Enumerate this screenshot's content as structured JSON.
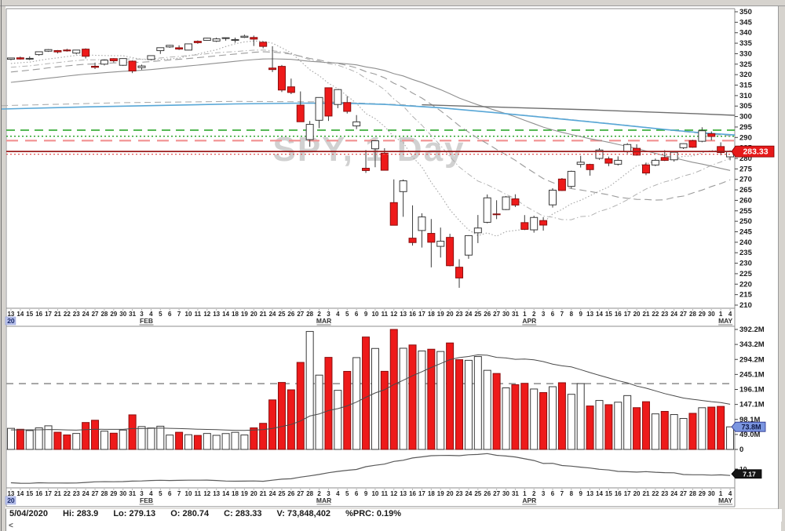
{
  "watermark": {
    "text": "SPY, 1 Day"
  },
  "price_axis": {
    "min": 210,
    "max": 350,
    "step": 5
  },
  "volume_axis_labels": [
    "392.2M",
    "343.2M",
    "294.2M",
    "245.1M",
    "196.1M",
    "147.1M",
    "98.1M",
    "49.0M",
    "0"
  ],
  "indicator_axis": {
    "tick": "10"
  },
  "badges": {
    "price": {
      "text": "283.33",
      "bg": "#e61919",
      "fg": "#ffffff",
      "border": "#7a0000"
    },
    "volume": {
      "text": "73.8M",
      "bg": "#7b96e0",
      "fg": "#0a1440",
      "border": "#26308c"
    },
    "indicator": {
      "text": "7.17",
      "bg": "#151515",
      "fg": "#ffffff",
      "border": "#000000"
    }
  },
  "levels": [
    {
      "price": 293.5,
      "color": "#2ea82e",
      "dash": "11,7",
      "w": 1.7,
      "above": false
    },
    {
      "price": 290.6,
      "color": "#1f9e1f",
      "dash": "2,3",
      "w": 1.4,
      "above": false
    },
    {
      "price": 288.5,
      "color": "#f29191",
      "dash": "15,9",
      "w": 2.2,
      "above": false
    },
    {
      "price": 283.33,
      "color": "#9c1f1f",
      "dash": "",
      "w": 1.8,
      "above": true
    },
    {
      "price": 282.0,
      "color": "#e25555",
      "dash": "2,3",
      "w": 1.3,
      "above": true
    }
  ],
  "volume_dash_level_m": 215,
  "status_bar": {
    "items": [
      "5/04/2020",
      "Hi: 283.9",
      "Lo: 279.13",
      "O: 280.74",
      "C: 283.33",
      "V: 73,848,402",
      "%PRC: 0.19%"
    ]
  },
  "scrollbar": {
    "left_arrow": "<"
  },
  "chart_data": {
    "type": "candlestick",
    "symbol": "SPY",
    "timeframe": "1 Day",
    "price_ylim": [
      210,
      350
    ],
    "volume_ylim_m": [
      0,
      392.2
    ],
    "x_labels": {
      "days": [
        "13",
        "14",
        "15",
        "16",
        "17",
        "21",
        "22",
        "23",
        "24",
        "27",
        "28",
        "29",
        "30",
        "31",
        "3",
        "4",
        "5",
        "6",
        "7",
        "10",
        "11",
        "12",
        "13",
        "14",
        "18",
        "19",
        "20",
        "21",
        "24",
        "25",
        "26",
        "27",
        "28",
        "2",
        "3",
        "4",
        "5",
        "6",
        "9",
        "10",
        "11",
        "12",
        "13",
        "16",
        "17",
        "18",
        "19",
        "20",
        "23",
        "24",
        "25",
        "26",
        "27",
        "30",
        "31",
        "1",
        "2",
        "3",
        "6",
        "7",
        "8",
        "9",
        "13",
        "14",
        "15",
        "16",
        "17",
        "20",
        "21",
        "22",
        "23",
        "24",
        "27",
        "28",
        "29",
        "30",
        "1",
        "4"
      ],
      "months": [
        {
          "i": 14,
          "label": "FEB"
        },
        {
          "i": 33,
          "label": "MAR"
        },
        {
          "i": 55,
          "label": "APR"
        },
        {
          "i": 76,
          "label": "MAY"
        }
      ],
      "year": {
        "i": 0,
        "label": "20"
      }
    },
    "ohlc": [
      [
        327.32,
        327.96,
        326.88,
        327.95
      ],
      [
        328.03,
        328.6,
        327.16,
        327.45
      ],
      [
        327.39,
        328.68,
        326.95,
        327.76
      ],
      [
        329.56,
        330.79,
        329.05,
        330.92
      ],
      [
        331.19,
        332.18,
        330.85,
        331.95
      ],
      [
        331.47,
        331.73,
        330.12,
        330.85
      ],
      [
        331.75,
        332.34,
        330.98,
        331.34
      ],
      [
        330.28,
        331.85,
        329.65,
        331.72
      ],
      [
        332.17,
        332.53,
        327.72,
        328.77
      ],
      [
        323.99,
        325.73,
        322.7,
        323.5
      ],
      [
        325.01,
        327.16,
        324.4,
        326.89
      ],
      [
        327.63,
        327.85,
        325.85,
        326.62
      ],
      [
        324.46,
        327.8,
        324.15,
        327.68
      ],
      [
        326.44,
        326.77,
        320.73,
        321.73
      ],
      [
        323.35,
        324.78,
        322.36,
        324.12
      ],
      [
        327.23,
        329.19,
        326.84,
        329.06
      ],
      [
        331.45,
        332.92,
        329.9,
        332.86
      ],
      [
        333.21,
        334.19,
        332.76,
        333.98
      ],
      [
        332.82,
        333.99,
        331.75,
        332.2
      ],
      [
        331.71,
        334.75,
        331.59,
        334.68
      ],
      [
        335.91,
        336.32,
        334.73,
        335.26
      ],
      [
        336.36,
        337.65,
        336.16,
        337.42
      ],
      [
        336.02,
        337.67,
        335.56,
        337.06
      ],
      [
        337.51,
        337.73,
        336.2,
        337.6
      ],
      [
        336.51,
        337.67,
        335.21,
        336.73
      ],
      [
        337.79,
        339.08,
        337.48,
        338.34
      ],
      [
        337.74,
        338.64,
        333.68,
        336.95
      ],
      [
        335.47,
        335.81,
        332.58,
        333.48
      ],
      [
        323.14,
        333.56,
        321.24,
        322.42
      ],
      [
        323.94,
        324.61,
        311.69,
        312.65
      ],
      [
        314.18,
        318.11,
        310.7,
        311.5
      ],
      [
        305.46,
        311.98,
        297.51,
        297.51
      ],
      [
        288.98,
        297.89,
        285.54,
        296.26
      ],
      [
        298.21,
        309.16,
        294.46,
        309.09
      ],
      [
        313.73,
        313.84,
        297.9,
        300.24
      ],
      [
        305.75,
        313.02,
        304.0,
        312.86
      ],
      [
        306.67,
        309.75,
        301.44,
        302.46
      ],
      [
        295.52,
        300.7,
        294.0,
        297.46
      ],
      [
        275.31,
        284.0,
        273.09,
        274.23
      ],
      [
        284.6,
        288.52,
        275.8,
        288.42
      ],
      [
        282.5,
        284.88,
        274.31,
        274.36
      ],
      [
        258.92,
        270.0,
        248.0,
        248.11
      ],
      [
        264.16,
        269.98,
        252.15,
        269.32
      ],
      [
        241.95,
        257.61,
        238.4,
        239.85
      ],
      [
        245.6,
        253.83,
        237.47,
        252.08
      ],
      [
        244.23,
        251.08,
        228.02,
        240.0
      ],
      [
        238.04,
        247.0,
        232.7,
        240.51
      ],
      [
        242.32,
        244.04,
        228.5,
        228.8
      ],
      [
        228.09,
        231.89,
        218.26,
        222.95
      ],
      [
        233.86,
        243.38,
        232.11,
        243.15
      ],
      [
        244.51,
        253.01,
        239.6,
        246.79
      ],
      [
        249.52,
        262.8,
        249.05,
        261.2
      ],
      [
        253.51,
        260.04,
        251.05,
        253.42
      ],
      [
        255.6,
        262.06,
        255.35,
        261.65
      ],
      [
        260.71,
        262.89,
        256.81,
        257.75
      ],
      [
        249.37,
        252.97,
        245.81,
        246.15
      ],
      [
        245.92,
        252.65,
        244.59,
        251.83
      ],
      [
        250.35,
        251.95,
        245.54,
        248.19
      ],
      [
        257.84,
        265.77,
        256.56,
        264.86
      ],
      [
        270.16,
        270.64,
        264.47,
        264.7
      ],
      [
        266.65,
        274.16,
        265.66,
        273.85
      ],
      [
        277.14,
        281.25,
        275.66,
        278.2
      ],
      [
        277.14,
        277.45,
        271.78,
        274.66
      ],
      [
        280.01,
        284.9,
        279.34,
        284.01
      ],
      [
        279.84,
        280.88,
        276.31,
        277.74
      ],
      [
        277.24,
        280.98,
        276.6,
        279.1
      ],
      [
        283.17,
        287.3,
        282.4,
        286.64
      ],
      [
        284.81,
        286.79,
        281.35,
        281.59
      ],
      [
        276.93,
        278.04,
        272.02,
        273.04
      ],
      [
        276.87,
        279.92,
        276.31,
        279.1
      ],
      [
        280.44,
        283.94,
        278.75,
        279.08
      ],
      [
        279.34,
        283.01,
        278.5,
        282.97
      ],
      [
        285.12,
        287.17,
        284.5,
        287.05
      ],
      [
        288.48,
        288.88,
        285.09,
        285.35
      ],
      [
        288.19,
        294.88,
        287.73,
        293.21
      ],
      [
        291.81,
        292.89,
        288.63,
        290.48
      ],
      [
        285.67,
        287.68,
        281.52,
        282.79
      ],
      [
        280.74,
        283.9,
        279.13,
        283.33
      ]
    ],
    "volume_m": [
      68.9,
      65.9,
      61.7,
      70.4,
      77.2,
      56.2,
      47.4,
      52.2,
      88.0,
      95.4,
      59.7,
      53.1,
      63.3,
      113.0,
      74.7,
      70.1,
      75.9,
      47.0,
      56.1,
      48.1,
      45.8,
      52.2,
      46.1,
      51.9,
      56.0,
      47.2,
      70.5,
      85.3,
      161.9,
      218.9,
      194.8,
      284.4,
      385.6,
      242.9,
      300.9,
      193.2,
      255.1,
      300.1,
      367.4,
      330.0,
      255.3,
      392.2,
      330.7,
      341.4,
      321.8,
      327.5,
      320.1,
      348.0,
      293.3,
      291.2,
      303.6,
      258.5,
      248.2,
      201.2,
      211.6,
      216.0,
      197.5,
      185.8,
      205.0,
      218.0,
      180.2,
      215.2,
      142.0,
      160.0,
      146.3,
      154.4,
      176.0,
      136.5,
      156.0,
      116.2,
      124.3,
      114.0,
      101.2,
      118.0,
      136.3,
      138.3,
      140.6,
      73.8
    ],
    "overlays": {
      "pre_closes": [
        303.0,
        304.0,
        305.5,
        306.2,
        306.0,
        305.8,
        306.5,
        307.5,
        308.0,
        309.0,
        309.4,
        310.0,
        310.5,
        311.2,
        311.9,
        312.1,
        311.4,
        312.0,
        313.5,
        314.0,
        314.3,
        314.9,
        315.3,
        315.0,
        316.2,
        317.3,
        318.0,
        318.6,
        319.2,
        319.6,
        320.0,
        320.5,
        321.0,
        321.4,
        320.8,
        321.2,
        322.0,
        322.6,
        323.0,
        323.7,
        324.2,
        324.6,
        323.3,
        324.8,
        325.7,
        324.9,
        325.9,
        326.2,
        325.9
      ],
      "pre_volumes": [
        62,
        58,
        65,
        70,
        55,
        60,
        72,
        66,
        59,
        63,
        68,
        57,
        61,
        64,
        70,
        58,
        55,
        67,
        73,
        66
      ],
      "sma": [
        {
          "n": 10,
          "dash": "1.5,2.5",
          "color": "#a3a3a3",
          "w": 1.1
        },
        {
          "n": 20,
          "dash": "7,3,1.5,3",
          "color": "#b2b2b2",
          "w": 1.0
        },
        {
          "n": 30,
          "dash": "9,5",
          "color": "#9a9a9a",
          "w": 1.1
        },
        {
          "n": 50,
          "dash": "",
          "color": "#8f8f8f",
          "w": 1.1
        }
      ],
      "blue_line": {
        "color": "#58a7d7",
        "w": 1.6,
        "points": [
          [
            -1,
            303.6
          ],
          [
            8,
            304.6
          ],
          [
            16,
            305.3
          ],
          [
            24,
            306.0
          ],
          [
            31,
            306.4
          ],
          [
            36,
            306.3
          ],
          [
            40,
            305.8
          ],
          [
            46,
            304.2
          ],
          [
            52,
            301.8
          ],
          [
            58,
            299.2
          ],
          [
            64,
            296.6
          ],
          [
            70,
            293.8
          ],
          [
            74,
            292.2
          ],
          [
            77.5,
            291.2
          ]
        ]
      },
      "dashed_long_ma": {
        "color": "#adadad",
        "w": 1.1,
        "dash": "8,5",
        "points": [
          [
            -1,
            305.2
          ],
          [
            12,
            306.6
          ],
          [
            24,
            307.2
          ],
          [
            34,
            307.0
          ],
          [
            42,
            305.6
          ],
          [
            50,
            302.6
          ],
          [
            58,
            299.4
          ],
          [
            66,
            295.8
          ],
          [
            72,
            292.8
          ],
          [
            77.5,
            290.6
          ]
        ]
      },
      "long_dark_ma": {
        "color": "#6e6e6e",
        "w": 1.4,
        "points": [
          [
            44,
            305.6
          ],
          [
            50,
            304.8
          ],
          [
            56,
            304.0
          ],
          [
            62,
            303.2
          ],
          [
            68,
            302.2
          ],
          [
            73,
            301.4
          ],
          [
            77.5,
            300.6
          ]
        ]
      },
      "volume_sma_n": 20,
      "atr_n": 14
    }
  }
}
